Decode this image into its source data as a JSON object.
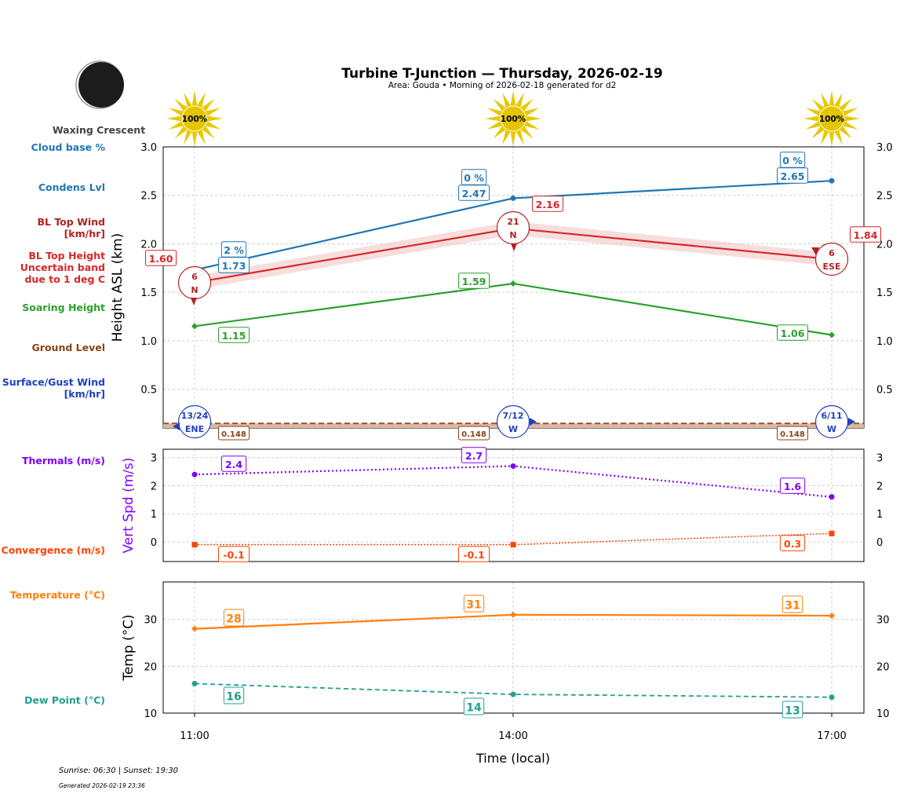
{
  "header": {
    "title": "Turbine T-Junction — Thursday, 2026-02-19",
    "subtitle": "Area: Gouda • Morning of 2026-02-18 generated for d2"
  },
  "moon": {
    "phase": "Waxing Crescent"
  },
  "sun_icons": [
    {
      "time": "11:00",
      "label": "100%"
    },
    {
      "time": "14:00",
      "label": "100%"
    },
    {
      "time": "17:00",
      "label": "100%"
    }
  ],
  "footer": {
    "sun": "Sunrise: 06:30 | Sunset: 19:30",
    "generated": "Generated 2026-02-19 23:36"
  },
  "colors": {
    "cloud": "#1f77b4",
    "bltop": "#d62728",
    "blwind": "#b22222",
    "soar": "#2ca02c",
    "ground": "#8b4513",
    "surface": "#1f3fbf",
    "thermal": "#7f00ff",
    "conv": "#ff4500",
    "temp": "#ff7f0e",
    "dew": "#20a090"
  },
  "chart_data": [
    {
      "type": "line",
      "ylabel": "Height ASL (km)",
      "ylim": [
        0.1,
        3.0
      ],
      "yticks": [
        "0.5",
        "1.0",
        "1.5",
        "2.0",
        "2.5",
        "3.0"
      ],
      "grid": true,
      "x": [
        "11:00",
        "14:00",
        "17:00"
      ],
      "row_labels": {
        "cloud": "Cloud base %",
        "condens": "Condens Lvl",
        "blwind": "BL Top Wind [km/hr]",
        "bltop": "BL Top Height Uncertain band due to 1 deg C",
        "soar": "Soaring Height",
        "ground": "Ground Level",
        "surface": "Surface/Gust Wind [km/hr]"
      },
      "condens": [
        1.73,
        2.47,
        2.65
      ],
      "condens_labels": [
        "1.73",
        "2.47",
        "2.65"
      ],
      "cloud_pct": [
        "2 %",
        "0 %",
        "0 %"
      ],
      "bltop": [
        1.6,
        2.16,
        1.84
      ],
      "bltop_labels": [
        "1.60",
        "2.16",
        "1.84"
      ],
      "bltop_band": 0.07,
      "blwind": [
        {
          "speed": "6",
          "dir": "N"
        },
        {
          "speed": "21",
          "dir": "N"
        },
        {
          "speed": "6",
          "dir": "ESE"
        }
      ],
      "soar": [
        1.15,
        1.59,
        1.06
      ],
      "soar_labels": [
        "1.15",
        "1.59",
        "1.06"
      ],
      "ground": [
        0.148,
        0.148,
        0.148
      ],
      "ground_labels": [
        "0.148",
        "0.148",
        "0.148"
      ],
      "surface": [
        {
          "speed": "13/24",
          "dir": "ENE"
        },
        {
          "speed": "7/12",
          "dir": "W"
        },
        {
          "speed": "6/11",
          "dir": "W"
        }
      ]
    },
    {
      "type": "line",
      "ylabel": "Vert Spd (m/s)",
      "ylim": [
        -0.7,
        3.3
      ],
      "yticks": [
        "0",
        "1",
        "2",
        "3"
      ],
      "grid": true,
      "row_labels": {
        "thermal": "Thermals (m/s)",
        "conv": "Convergence (m/s)"
      },
      "thermal": [
        2.4,
        2.7,
        1.6
      ],
      "thermal_labels": [
        "2.4",
        "2.7",
        "1.6"
      ],
      "conv": [
        -0.1,
        -0.1,
        0.3
      ],
      "conv_labels": [
        "-0.1",
        "-0.1",
        "0.3"
      ]
    },
    {
      "type": "line",
      "ylabel": "Temp (°C)",
      "xlabel": "Time (local)",
      "ylim": [
        10,
        38
      ],
      "yticks": [
        "10",
        "20",
        "30"
      ],
      "grid": true,
      "row_labels": {
        "temp": "Temperature (°C)",
        "dew": "Dew Point (°C)"
      },
      "xticks": [
        "11:00",
        "14:00",
        "17:00"
      ],
      "temp": [
        28,
        31,
        30.8
      ],
      "temp_labels": [
        "28",
        "31",
        "31"
      ],
      "dew": [
        16.3,
        14,
        13.4
      ],
      "dew_labels": [
        "16",
        "14",
        "13"
      ]
    }
  ]
}
